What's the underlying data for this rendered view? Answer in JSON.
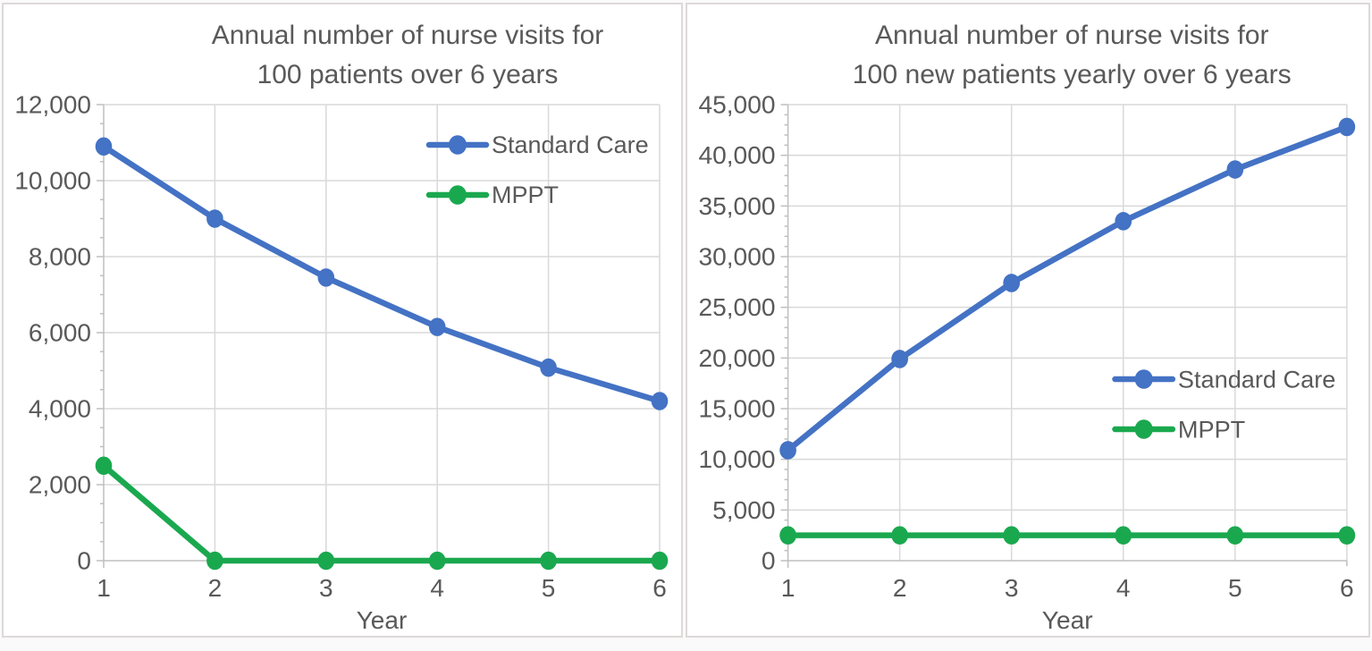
{
  "page": {
    "background": "#fbfafa",
    "panel_background": "#ffffff",
    "panel_border_color": "#ddd9d9"
  },
  "styles": {
    "text_color": "#595959",
    "grid_color": "#d9d9d9",
    "axis_color": "#bfbfbf",
    "standard_care_color": "#4472c4",
    "mppt_color": "#1aa84f"
  },
  "chart_data": [
    {
      "type": "line",
      "title_line1": "Annual number of nurse visits for",
      "title_line2": "100 patients over 6 years",
      "xlabel": "Year",
      "x": [
        1,
        2,
        3,
        4,
        5,
        6
      ],
      "xtick_labels": [
        "1",
        "2",
        "3",
        "4",
        "5",
        "6"
      ],
      "series": [
        {
          "name": "Standard Care",
          "color": "#4472c4",
          "values": [
            10900,
            9000,
            7450,
            6150,
            5080,
            4200
          ]
        },
        {
          "name": "MPPT",
          "color": "#1aa84f",
          "values": [
            2500,
            0,
            0,
            0,
            0,
            0
          ]
        }
      ],
      "ylim": [
        0,
        12000
      ],
      "ymajor": 2000,
      "yminor": 500,
      "ytick_labels": [
        "0",
        "2,000",
        "4,000",
        "6,000",
        "8,000",
        "10,000",
        "12,000"
      ],
      "grid": true,
      "legend_position": "top-right",
      "legend_entries": [
        "Standard Care",
        "MPPT"
      ]
    },
    {
      "type": "line",
      "title_line1": "Annual number of nurse visits for",
      "title_line2": "100 new patients yearly over 6 years",
      "xlabel": "Year",
      "x": [
        1,
        2,
        3,
        4,
        5,
        6
      ],
      "xtick_labels": [
        "1",
        "2",
        "3",
        "4",
        "5",
        "6"
      ],
      "series": [
        {
          "name": "Standard Care",
          "color": "#4472c4",
          "values": [
            10900,
            19900,
            27400,
            33500,
            38600,
            42800
          ]
        },
        {
          "name": "MPPT",
          "color": "#1aa84f",
          "values": [
            2500,
            2500,
            2500,
            2500,
            2500,
            2500
          ]
        }
      ],
      "ylim": [
        0,
        45000
      ],
      "ymajor": 5000,
      "yminor": 1000,
      "ytick_labels": [
        "0",
        "5,000",
        "10,000",
        "15,000",
        "20,000",
        "25,000",
        "30,000",
        "35,000",
        "40,000",
        "45,000"
      ],
      "grid": true,
      "legend_position": "middle-right",
      "legend_entries": [
        "Standard Care",
        "MPPT"
      ]
    }
  ]
}
